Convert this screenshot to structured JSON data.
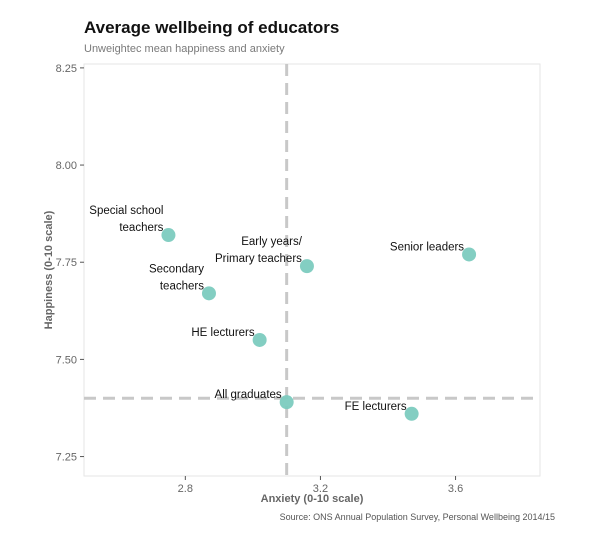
{
  "chart_data": {
    "type": "scatter",
    "title": "Average wellbeing of educators",
    "subtitle": "Unweightec mean happiness and anxiety",
    "xlabel": "Anxiety (0-10 scale)",
    "ylabel": "Happiness (0-10 scale)",
    "source": "Source: ONS Annual Population Survey, Personal Wellbeing 2014/15",
    "xlim": [
      2.5,
      3.85
    ],
    "ylim": [
      7.2,
      8.26
    ],
    "x_ticks": [
      2.8,
      3.2,
      3.6
    ],
    "x_tick_labels": [
      "2.8",
      "3.2",
      "3.6"
    ],
    "y_ticks": [
      7.25,
      7.5,
      7.75,
      8.0,
      8.25
    ],
    "y_tick_labels": [
      "7.25",
      "7.50",
      "7.75",
      "8.00",
      "8.25"
    ],
    "reference_lines": {
      "x": 3.1,
      "y": 7.4
    },
    "grid": false,
    "point_color": "#7ccbbf",
    "points": [
      {
        "x": 2.75,
        "y": 7.82,
        "label_lines": [
          "Special school",
          "teachers"
        ]
      },
      {
        "x": 2.87,
        "y": 7.67,
        "label_lines": [
          "Secondary",
          "teachers"
        ]
      },
      {
        "x": 3.16,
        "y": 7.74,
        "label_lines": [
          "Early years/",
          "Primary teachers"
        ]
      },
      {
        "x": 3.64,
        "y": 7.77,
        "label_lines": [
          "Senior leaders"
        ]
      },
      {
        "x": 3.02,
        "y": 7.55,
        "label_lines": [
          "HE lecturers"
        ]
      },
      {
        "x": 3.1,
        "y": 7.39,
        "label_lines": [
          "All graduates"
        ]
      },
      {
        "x": 3.47,
        "y": 7.36,
        "label_lines": [
          "FE lecturers"
        ]
      }
    ]
  }
}
